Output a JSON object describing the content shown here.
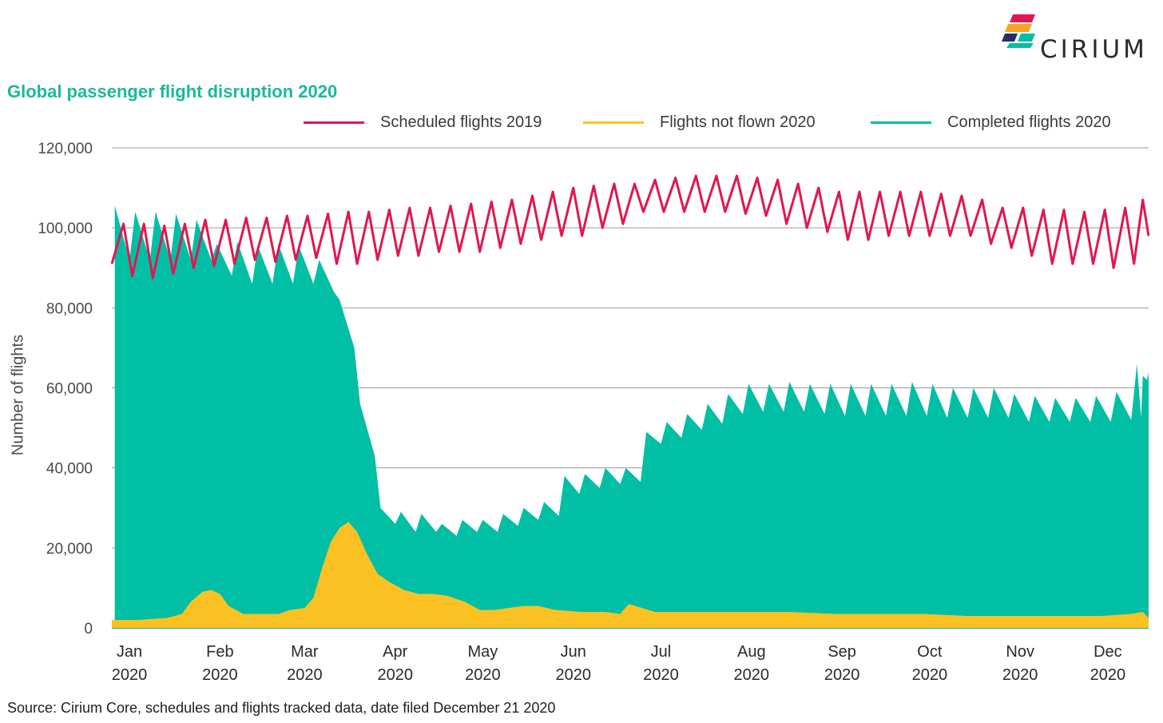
{
  "header": {
    "logo_text": "CIRIUM"
  },
  "title": "Global passenger flight disruption 2020",
  "source": "Source: Cirium Core, schedules and flights tracked data, date filed December 21 2020",
  "chart_data": {
    "type": "area",
    "title": "Global passenger flight disruption 2020",
    "ylabel": "Number of flights",
    "xlabel": "",
    "ylim": [
      0,
      120000
    ],
    "yticks": [
      "120,000",
      "100,000",
      "80,000",
      "60,000",
      "40,000",
      "20,000",
      "0"
    ],
    "ytick_values": [
      120000,
      100000,
      80000,
      60000,
      40000,
      20000,
      0
    ],
    "x_range": [
      "2020-01-01",
      "2020-12-21"
    ],
    "xticks": [
      {
        "month": "Jan",
        "year": "2020",
        "date": "2020-01-01"
      },
      {
        "month": "Feb",
        "year": "2020",
        "date": "2020-02-01"
      },
      {
        "month": "Mar",
        "year": "2020",
        "date": "2020-03-01"
      },
      {
        "month": "Apr",
        "year": "2020",
        "date": "2020-04-01"
      },
      {
        "month": "May",
        "year": "2020",
        "date": "2020-05-01"
      },
      {
        "month": "Jun",
        "year": "2020",
        "date": "2020-06-01"
      },
      {
        "month": "Jul",
        "year": "2020",
        "date": "2020-07-01"
      },
      {
        "month": "Aug",
        "year": "2020",
        "date": "2020-08-01"
      },
      {
        "month": "Sep",
        "year": "2020",
        "date": "2020-09-01"
      },
      {
        "month": "Oct",
        "year": "2020",
        "date": "2020-10-01"
      },
      {
        "month": "Nov",
        "year": "2020",
        "date": "2020-11-01"
      },
      {
        "month": "Dec",
        "year": "2020",
        "date": "2020-12-01"
      }
    ],
    "grid": true,
    "legend_position": "top-right",
    "series": [
      {
        "name": "Scheduled flights 2019",
        "type": "line",
        "color": "#e0174f",
        "weekly_min_dates": [
          "2020-01-01",
          "2020-01-08",
          "2020-01-15",
          "2020-01-22",
          "2020-01-29",
          "2020-02-05",
          "2020-02-12",
          "2020-02-19",
          "2020-02-26",
          "2020-03-04",
          "2020-03-11",
          "2020-03-18",
          "2020-03-25",
          "2020-04-01",
          "2020-04-08",
          "2020-04-15",
          "2020-04-22",
          "2020-04-29",
          "2020-05-06",
          "2020-05-13",
          "2020-05-20",
          "2020-05-27",
          "2020-06-03",
          "2020-06-10",
          "2020-06-17",
          "2020-06-24",
          "2020-07-01",
          "2020-07-08",
          "2020-07-15",
          "2020-07-22",
          "2020-07-29",
          "2020-08-05",
          "2020-08-12",
          "2020-08-19",
          "2020-08-26",
          "2020-09-02",
          "2020-09-09",
          "2020-09-16",
          "2020-09-23",
          "2020-09-30",
          "2020-10-07",
          "2020-10-14",
          "2020-10-21",
          "2020-10-28",
          "2020-11-04",
          "2020-11-11",
          "2020-11-18",
          "2020-11-25",
          "2020-12-02",
          "2020-12-09",
          "2020-12-16",
          "2020-12-21"
        ],
        "weekly_min": [
          91000,
          88000,
          87500,
          88500,
          90000,
          90500,
          91000,
          92000,
          91500,
          92000,
          92500,
          91000,
          91000,
          92000,
          93000,
          93000,
          94000,
          94000,
          94000,
          95000,
          96000,
          97000,
          98000,
          98000,
          100000,
          101000,
          104000,
          104000,
          104000,
          104000,
          104000,
          103500,
          103000,
          101000,
          100000,
          99000,
          97000,
          97000,
          98000,
          98000,
          98000,
          98000,
          98000,
          96000,
          95000,
          93000,
          91000,
          91000,
          91000,
          90000,
          91000,
          98000
        ],
        "weekly_max_dates": [
          "2020-01-05",
          "2020-01-12",
          "2020-01-19",
          "2020-01-26",
          "2020-02-02",
          "2020-02-09",
          "2020-02-16",
          "2020-02-23",
          "2020-03-01",
          "2020-03-08",
          "2020-03-15",
          "2020-03-22",
          "2020-03-29",
          "2020-04-05",
          "2020-04-12",
          "2020-04-19",
          "2020-04-26",
          "2020-05-03",
          "2020-05-10",
          "2020-05-17",
          "2020-05-24",
          "2020-05-31",
          "2020-06-07",
          "2020-06-14",
          "2020-06-21",
          "2020-06-28",
          "2020-07-05",
          "2020-07-12",
          "2020-07-19",
          "2020-07-26",
          "2020-08-02",
          "2020-08-09",
          "2020-08-16",
          "2020-08-23",
          "2020-08-30",
          "2020-09-06",
          "2020-09-13",
          "2020-09-20",
          "2020-09-27",
          "2020-10-04",
          "2020-10-11",
          "2020-10-18",
          "2020-10-25",
          "2020-11-01",
          "2020-11-08",
          "2020-11-15",
          "2020-11-22",
          "2020-11-29",
          "2020-12-06",
          "2020-12-13",
          "2020-12-19"
        ],
        "weekly_max": [
          101000,
          101000,
          100500,
          101000,
          102000,
          102000,
          102500,
          102500,
          103000,
          103000,
          103500,
          104000,
          104000,
          104500,
          105000,
          105000,
          105500,
          106000,
          106500,
          107000,
          108000,
          109000,
          110000,
          110500,
          111000,
          111000,
          112000,
          112500,
          113000,
          113000,
          113000,
          112500,
          112000,
          111000,
          110000,
          109000,
          109000,
          109000,
          109000,
          109000,
          108500,
          108000,
          107000,
          105000,
          105000,
          104500,
          104500,
          104000,
          104500,
          105000,
          107000
        ]
      },
      {
        "name": "Flights not flown 2020",
        "type": "area",
        "color": "#fbc123",
        "dates": [
          "2020-01-01",
          "2020-01-10",
          "2020-01-20",
          "2020-01-25",
          "2020-01-28",
          "2020-02-01",
          "2020-02-04",
          "2020-02-07",
          "2020-02-10",
          "2020-02-15",
          "2020-02-20",
          "2020-02-27",
          "2020-03-02",
          "2020-03-07",
          "2020-03-10",
          "2020-03-13",
          "2020-03-16",
          "2020-03-19",
          "2020-03-22",
          "2020-03-25",
          "2020-03-28",
          "2020-04-01",
          "2020-04-05",
          "2020-04-10",
          "2020-04-15",
          "2020-04-20",
          "2020-04-25",
          "2020-05-01",
          "2020-05-06",
          "2020-05-11",
          "2020-05-16",
          "2020-05-21",
          "2020-05-26",
          "2020-06-01",
          "2020-06-10",
          "2020-06-18",
          "2020-06-23",
          "2020-06-26",
          "2020-07-05",
          "2020-07-20",
          "2020-08-05",
          "2020-08-20",
          "2020-09-05",
          "2020-09-20",
          "2020-10-05",
          "2020-10-20",
          "2020-11-05",
          "2020-11-20",
          "2020-12-05",
          "2020-12-15",
          "2020-12-19",
          "2020-12-21"
        ],
        "values": [
          2000,
          2000,
          2500,
          3500,
          6500,
          9000,
          9500,
          8500,
          5500,
          3500,
          3500,
          3500,
          4500,
          5000,
          7500,
          15000,
          21500,
          25000,
          26500,
          24000,
          19000,
          13500,
          11500,
          9500,
          8500,
          8500,
          8000,
          6500,
          4500,
          4500,
          5000,
          5500,
          5500,
          4500,
          4000,
          4000,
          3500,
          6000,
          4000,
          4000,
          4000,
          4000,
          3500,
          3500,
          3500,
          3000,
          3000,
          3000,
          3000,
          3500,
          4000,
          2500
        ]
      },
      {
        "name": "Completed flights 2020",
        "type": "area",
        "color": "#00bfa5",
        "weekly_high_dates": [
          "2020-01-02",
          "2020-01-09",
          "2020-01-16",
          "2020-01-23",
          "2020-01-30",
          "2020-02-06",
          "2020-02-13",
          "2020-02-20",
          "2020-02-27",
          "2020-03-05",
          "2020-03-12",
          "2020-03-19",
          "2020-03-26",
          "2020-04-02",
          "2020-04-09",
          "2020-04-16",
          "2020-04-23",
          "2020-04-30",
          "2020-05-07",
          "2020-05-14",
          "2020-05-21",
          "2020-05-28",
          "2020-06-04",
          "2020-06-11",
          "2020-06-18",
          "2020-06-25",
          "2020-07-02",
          "2020-07-09",
          "2020-07-16",
          "2020-07-23",
          "2020-07-30",
          "2020-08-06",
          "2020-08-13",
          "2020-08-20",
          "2020-08-27",
          "2020-09-03",
          "2020-09-10",
          "2020-09-17",
          "2020-09-24",
          "2020-10-01",
          "2020-10-08",
          "2020-10-15",
          "2020-10-22",
          "2020-10-29",
          "2020-11-05",
          "2020-11-12",
          "2020-11-19",
          "2020-11-26",
          "2020-12-03",
          "2020-12-10",
          "2020-12-17",
          "2020-12-19",
          "2020-12-21"
        ],
        "weekly_high": [
          105500,
          104000,
          104000,
          103500,
          102000,
          96000,
          96500,
          95500,
          96000,
          95500,
          92000,
          82000,
          56000,
          30000,
          29000,
          28500,
          26000,
          27000,
          27000,
          28500,
          30000,
          31500,
          38000,
          38500,
          40000,
          40000,
          49000,
          51500,
          53500,
          56000,
          58500,
          61000,
          61000,
          61500,
          61000,
          61000,
          61000,
          61000,
          61000,
          61500,
          61000,
          60000,
          60000,
          60000,
          58500,
          58000,
          57500,
          57500,
          58000,
          59000,
          66000,
          63000,
          64000
        ],
        "weekly_low": [
          92000,
          92000,
          92000,
          92000,
          92000,
          88000,
          86000,
          86000,
          86000,
          86000,
          84000,
          70000,
          43000,
          26000,
          24000,
          24000,
          23000,
          24000,
          24000,
          25500,
          27000,
          28000,
          33500,
          35000,
          36000,
          36500,
          46000,
          47500,
          49500,
          51000,
          53500,
          54000,
          54000,
          54000,
          53500,
          53000,
          53000,
          53000,
          53000,
          53000,
          52500,
          52500,
          52500,
          52500,
          51500,
          51500,
          51500,
          51500,
          51500,
          52000,
          52500,
          62000,
          63000
        ]
      }
    ]
  }
}
